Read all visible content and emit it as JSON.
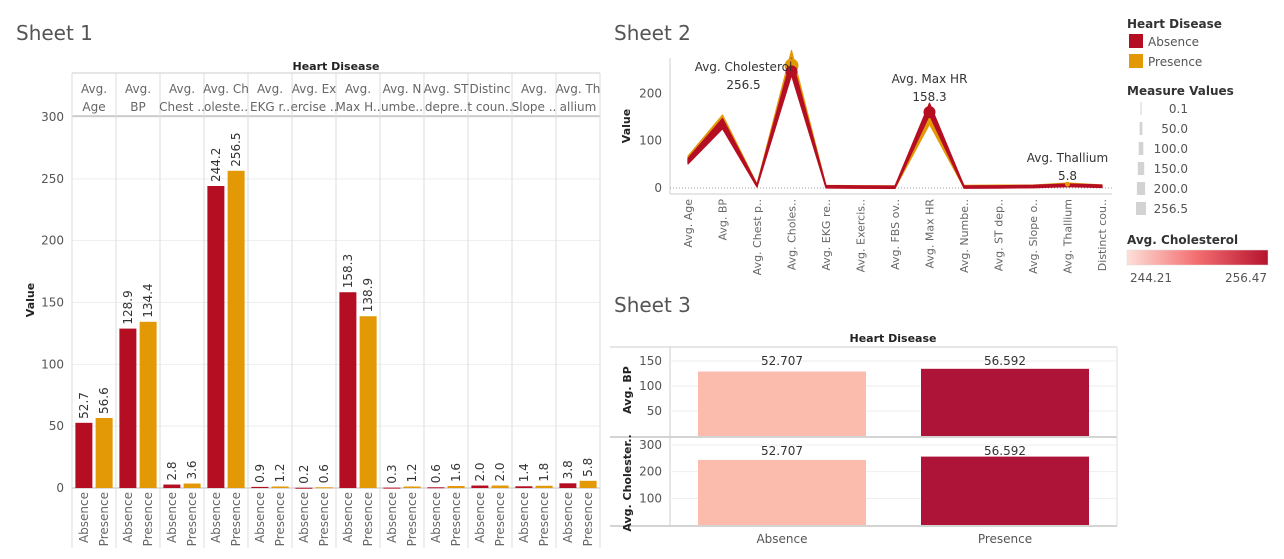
{
  "sheet1": {
    "title": "Sheet 1",
    "header": "Heart Disease",
    "ylabel": "Value",
    "yticks": [
      300,
      250,
      200,
      150,
      100,
      50,
      0
    ],
    "columns": [
      "Avg.\nAge",
      "Avg.\nBP",
      "Avg.\nChest ..",
      "Avg. Ch\noleste..",
      "Avg.\nEKG r..",
      "Avg. Ex\nercise ..",
      "Avg.\nMax H..",
      "Avg. N\numbe..",
      "Avg. ST\ndepre..",
      "Distinc\nt coun..",
      "Avg.\nSlope ..",
      "Avg. Th\nallium"
    ],
    "groups": [
      "Absence",
      "Presence"
    ]
  },
  "sheet2": {
    "title": "Sheet 2",
    "ylabel": "Value",
    "yticks": [
      200,
      100,
      0
    ],
    "xlabels": [
      "Avg. Age",
      "Avg. BP",
      "Avg. Chest p..",
      "Avg. Choles..",
      "Avg. EKG re..",
      "Avg. Exercis..",
      "Avg. FBS ov..",
      "Avg. Max HR",
      "Avg. Numbe..",
      "Avg. ST dep..",
      "Avg. Slope o..",
      "Avg. Thallium",
      "Distinct cou.."
    ],
    "annotations": [
      {
        "name": "Avg. Cholesterol",
        "value": "256.5"
      },
      {
        "name": "Avg. Max HR",
        "value": "158.3"
      },
      {
        "name": "Avg. Thallium",
        "value": "5.8"
      }
    ]
  },
  "sheet3": {
    "title": "Sheet 3",
    "header": "Heart Disease",
    "row_labels": [
      "Avg. BP",
      "Avg. Cholester.."
    ],
    "bp_ticks": [
      150,
      100,
      50
    ],
    "chol_ticks": [
      300,
      200,
      100
    ],
    "categories": [
      "Absence",
      "Presence"
    ],
    "labels": [
      "52.707",
      "56.592"
    ]
  },
  "legend": {
    "title": "Heart Disease",
    "items": [
      {
        "label": "Absence",
        "color": "#b50e23"
      },
      {
        "label": "Presence",
        "color": "#e39806"
      }
    ],
    "size_title": "Measure Values",
    "size_items": [
      "0.1",
      "50.0",
      "100.0",
      "150.0",
      "200.0",
      "256.5"
    ],
    "gradient_title": "Avg. Cholesterol",
    "gradient_min": "244.21",
    "gradient_max": "256.47"
  },
  "colors": {
    "absence": "#b50e23",
    "presence": "#e39806",
    "pale": "#fcbcad",
    "deep": "#ae1438"
  },
  "chart_data": [
    {
      "type": "bar",
      "title": "Sheet 1",
      "ylabel": "Value",
      "ylim": [
        0,
        300
      ],
      "categories": [
        "Avg. Age",
        "Avg. BP",
        "Avg. Chest ..",
        "Avg. Cholesterol",
        "Avg. EKG r..",
        "Avg. Exercise ..",
        "Avg. Max H..",
        "Avg. Numbe..",
        "Avg. ST depre..",
        "Distinct coun..",
        "Avg. Slope ..",
        "Avg. Thallium"
      ],
      "series": [
        {
          "name": "Absence",
          "values": [
            52.7,
            128.9,
            2.8,
            244.2,
            0.9,
            0.2,
            158.3,
            0.3,
            0.6,
            2.0,
            1.4,
            3.8
          ]
        },
        {
          "name": "Presence",
          "values": [
            56.6,
            134.4,
            3.6,
            256.5,
            1.2,
            0.6,
            138.9,
            1.2,
            1.6,
            2.0,
            1.8,
            5.8
          ]
        }
      ]
    },
    {
      "type": "area",
      "title": "Sheet 2",
      "ylabel": "Value",
      "ylim": [
        0,
        300
      ],
      "x": [
        "Avg. Age",
        "Avg. BP",
        "Avg. Chest p..",
        "Avg. Choles..",
        "Avg. EKG re..",
        "Avg. Exercis..",
        "Avg. FBS ov..",
        "Avg. Max HR",
        "Avg. Numbe..",
        "Avg. ST dep..",
        "Avg. Slope o..",
        "Avg. Thallium",
        "Distinct cou.."
      ],
      "series": [
        {
          "name": "Absence",
          "values": [
            52.7,
            128.9,
            2.8,
            244.2,
            0.9,
            0.2,
            0.1,
            158.3,
            0.3,
            0.6,
            1.4,
            3.8,
            2.0
          ]
        },
        {
          "name": "Presence",
          "values": [
            56.6,
            134.4,
            3.6,
            256.5,
            1.2,
            0.6,
            0.1,
            138.9,
            1.2,
            1.6,
            1.8,
            5.8,
            2.0
          ]
        }
      ]
    },
    {
      "type": "bar",
      "title": "Sheet 3",
      "categories": [
        "Absence",
        "Presence"
      ],
      "series": [
        {
          "name": "Avg. BP",
          "values": [
            128.9,
            134.4
          ]
        },
        {
          "name": "Avg. Cholester..",
          "values": [
            244.2,
            256.5
          ]
        }
      ],
      "labels": [
        "52.707",
        "56.592"
      ],
      "ylim_bp": [
        0,
        150
      ],
      "ylim_chol": [
        0,
        300
      ]
    }
  ]
}
